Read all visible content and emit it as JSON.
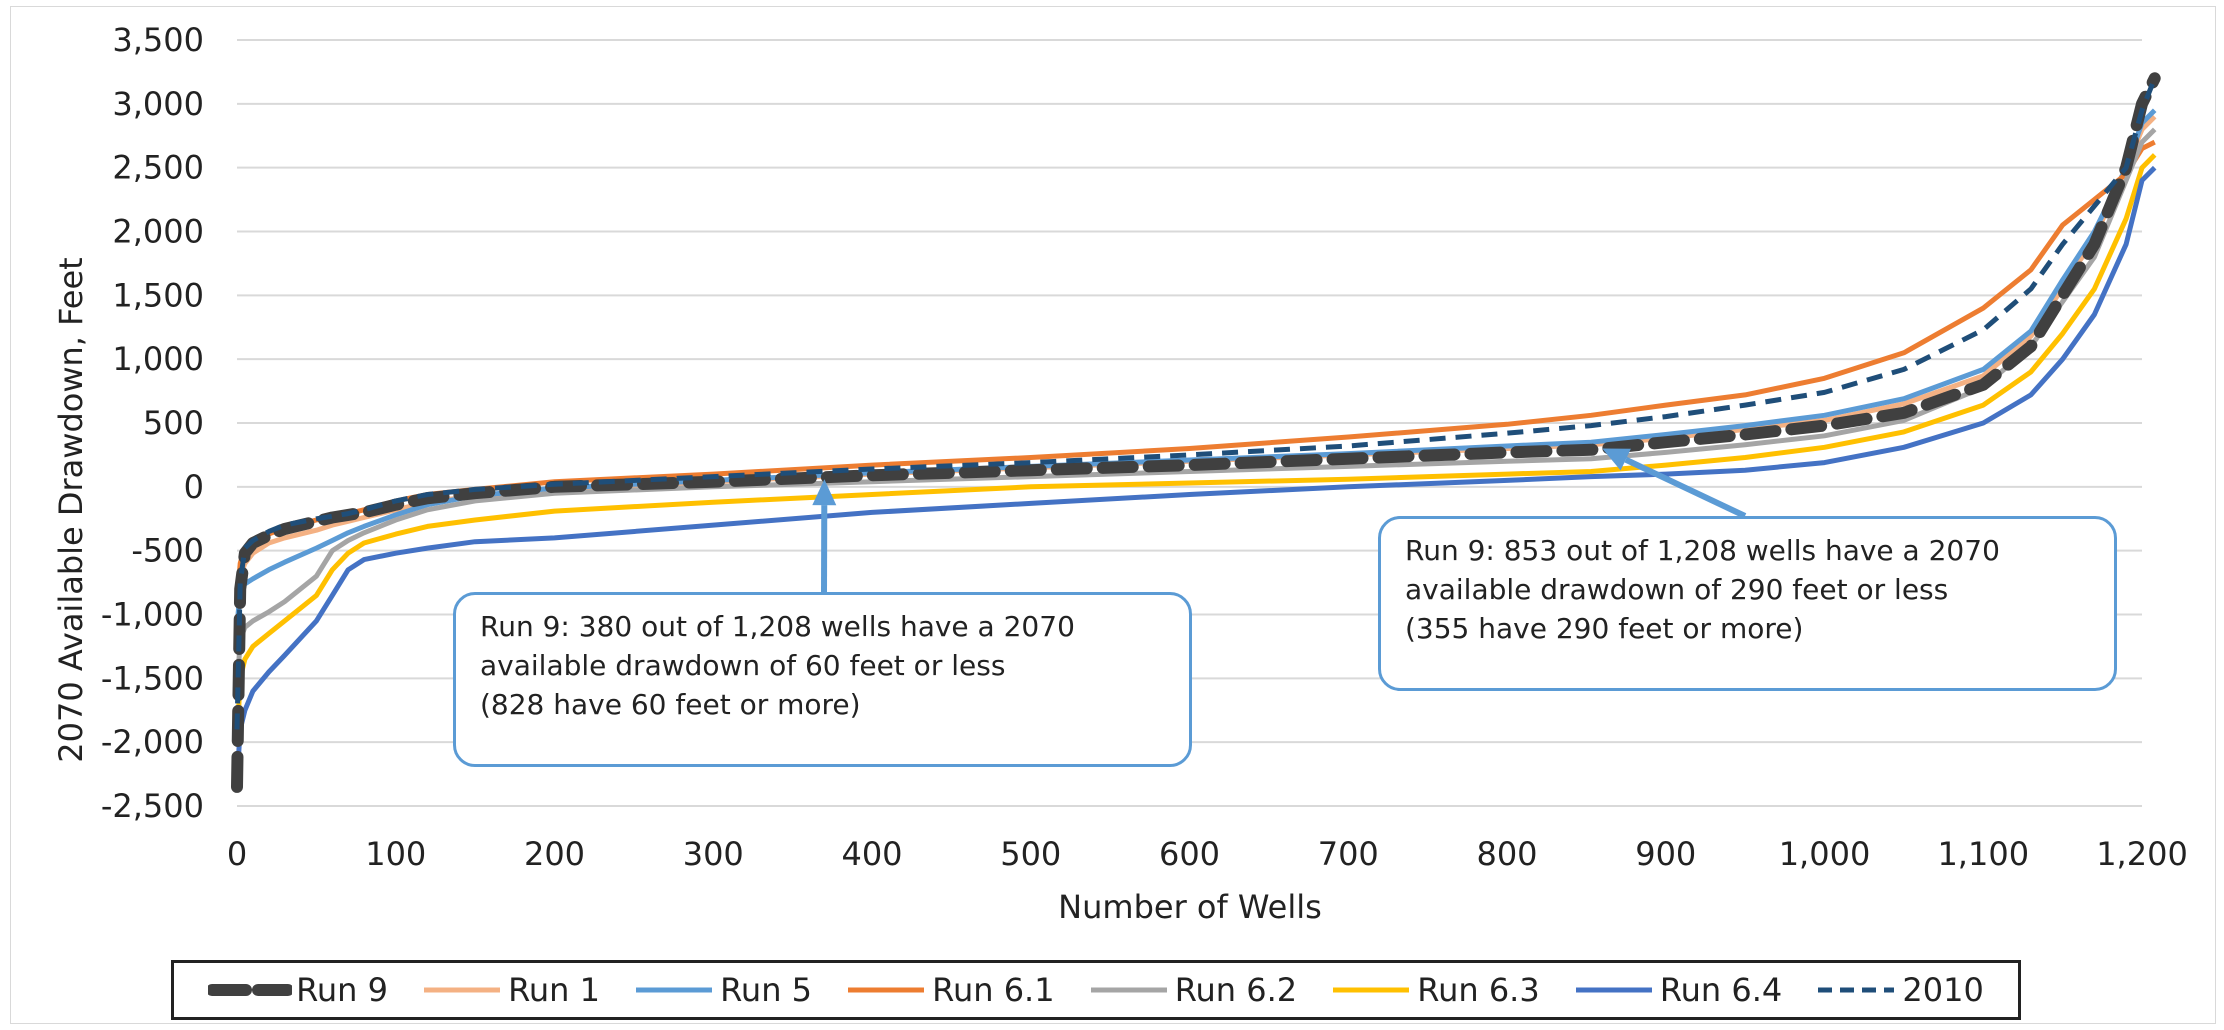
{
  "chart_data": {
    "type": "line",
    "xlabel": "Number of Wells",
    "ylabel": "2070 Available Drawdown, Feet",
    "xlim": [
      0,
      1200
    ],
    "ylim": [
      -2500,
      3500
    ],
    "xticks": [
      "0",
      "100",
      "200",
      "300",
      "400",
      "500",
      "600",
      "700",
      "800",
      "900",
      "1,000",
      "1,100",
      "1,200"
    ],
    "yticks": [
      "3,500",
      "3,000",
      "2,500",
      "2,000",
      "1,500",
      "1,000",
      "500",
      "0",
      "-500",
      "-1,000",
      "-1,500",
      "-2,000",
      "-2,500"
    ],
    "grid": "horizontal",
    "legend_position": "bottom",
    "x": [
      0,
      2,
      5,
      10,
      20,
      30,
      50,
      60,
      70,
      80,
      100,
      120,
      150,
      200,
      300,
      400,
      500,
      600,
      700,
      800,
      853,
      900,
      950,
      1000,
      1050,
      1100,
      1130,
      1150,
      1170,
      1190,
      1200,
      1208
    ],
    "series": [
      {
        "name": "Run 9",
        "color": "#404040",
        "dash": "bold-dash",
        "values": [
          -2350,
          -800,
          -520,
          -440,
          -380,
          -330,
          -270,
          -240,
          -220,
          -200,
          -140,
          -90,
          -50,
          0,
          40,
          90,
          130,
          170,
          220,
          270,
          290,
          350,
          410,
          480,
          580,
          800,
          1100,
          1500,
          1900,
          2500,
          3000,
          3200
        ]
      },
      {
        "name": "Run 1",
        "color": "#f4b183",
        "dash": "solid",
        "values": [
          -1200,
          -700,
          -600,
          -520,
          -440,
          -400,
          -340,
          -300,
          -270,
          -240,
          -180,
          -120,
          -70,
          -20,
          40,
          100,
          150,
          200,
          250,
          300,
          330,
          380,
          450,
          520,
          650,
          870,
          1180,
          1560,
          1950,
          2500,
          2800,
          2900
        ]
      },
      {
        "name": "Run 5",
        "color": "#5b9bd5",
        "dash": "solid",
        "values": [
          -1100,
          -800,
          -760,
          -720,
          -650,
          -590,
          -480,
          -420,
          -360,
          -310,
          -220,
          -140,
          -70,
          -10,
          50,
          110,
          160,
          210,
          260,
          320,
          350,
          410,
          480,
          560,
          690,
          920,
          1220,
          1620,
          2000,
          2500,
          2850,
          2950
        ]
      },
      {
        "name": "Run 6.1",
        "color": "#ed7d31",
        "dash": "solid",
        "values": [
          -900,
          -600,
          -480,
          -430,
          -370,
          -320,
          -260,
          -230,
          -210,
          -180,
          -110,
          -60,
          -20,
          40,
          100,
          170,
          230,
          300,
          390,
          490,
          560,
          640,
          720,
          850,
          1050,
          1400,
          1700,
          2050,
          2250,
          2450,
          2650,
          2700
        ]
      },
      {
        "name": "Run 6.2",
        "color": "#a5a5a5",
        "dash": "solid",
        "values": [
          -1600,
          -1200,
          -1100,
          -1050,
          -980,
          -900,
          -700,
          -500,
          -420,
          -360,
          -260,
          -180,
          -110,
          -50,
          0,
          40,
          80,
          120,
          160,
          200,
          220,
          270,
          330,
          400,
          520,
          780,
          1100,
          1450,
          1800,
          2400,
          2700,
          2800
        ]
      },
      {
        "name": "Run 6.3",
        "color": "#ffc000",
        "dash": "solid",
        "values": [
          -2000,
          -1500,
          -1350,
          -1250,
          -1150,
          -1050,
          -850,
          -650,
          -520,
          -440,
          -370,
          -310,
          -260,
          -190,
          -120,
          -60,
          0,
          30,
          60,
          100,
          120,
          170,
          230,
          310,
          430,
          640,
          900,
          1200,
          1550,
          2100,
          2500,
          2600
        ]
      },
      {
        "name": "Run 6.4",
        "color": "#4472c4",
        "dash": "solid",
        "values": [
          -2300,
          -1900,
          -1750,
          -1600,
          -1450,
          -1320,
          -1050,
          -850,
          -650,
          -570,
          -520,
          -480,
          -430,
          -400,
          -300,
          -200,
          -130,
          -60,
          0,
          50,
          80,
          100,
          130,
          190,
          310,
          500,
          720,
          1000,
          1350,
          1900,
          2400,
          2500
        ]
      },
      {
        "name": "2010",
        "color": "#1f4e79",
        "dash": "dash",
        "values": [
          -1900,
          -750,
          -480,
          -420,
          -350,
          -300,
          -250,
          -230,
          -210,
          -180,
          -110,
          -60,
          -20,
          20,
          80,
          140,
          190,
          250,
          320,
          420,
          480,
          550,
          640,
          740,
          920,
          1230,
          1550,
          1900,
          2200,
          2500,
          2950,
          3200
        ]
      }
    ],
    "annotations": [
      {
        "lines": [
          "Run 9: 380 out of 1,208 wells have a 2070",
          "available drawdown of 60 feet or less",
          "(828 have 60 feet or more)"
        ],
        "arrow_to": [
          370,
          60
        ]
      },
      {
        "lines": [
          "Run 9: 853 out of 1,208 wells have a 2070",
          "available drawdown of 290 feet or less",
          "(355 have 290 feet or more)"
        ],
        "arrow_to": [
          860,
          300
        ]
      }
    ]
  }
}
